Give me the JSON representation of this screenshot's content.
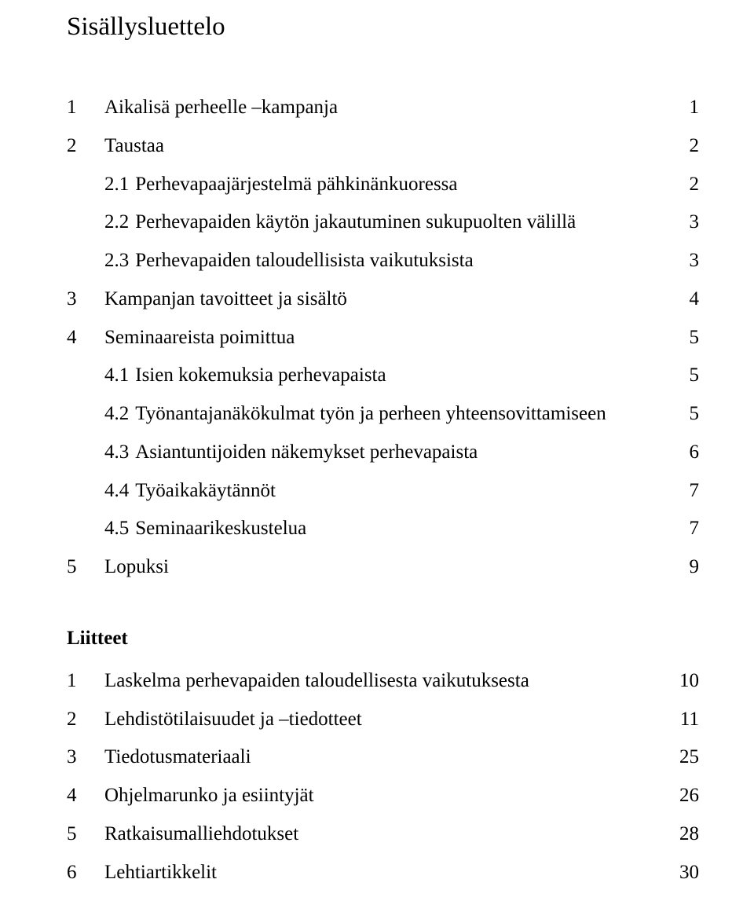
{
  "title": "Sisällysluettelo",
  "toc": {
    "items": [
      {
        "index": "1",
        "label": "Aikalisä perheelle –kampanja",
        "page": "1",
        "level": 0
      },
      {
        "index": "2",
        "label": "Taustaa",
        "page": "2",
        "level": 0
      },
      {
        "index": "",
        "sub": "2.1",
        "label": "Perhevapaajärjestelmä pähkinänkuoressa",
        "page": "2",
        "level": 1
      },
      {
        "index": "",
        "sub": "2.2",
        "label": "Perhevapaiden käytön  jakautuminen sukupuolten välillä",
        "page": "3",
        "level": 1
      },
      {
        "index": "",
        "sub": "2.3",
        "label": "Perhevapaiden taloudellisista vaikutuksista",
        "page": "3",
        "level": 1
      },
      {
        "index": "3",
        "label": "Kampanjan tavoitteet ja sisältö",
        "page": "4",
        "level": 0
      },
      {
        "index": "4",
        "label": "Seminaareista poimittua",
        "page": "5",
        "level": 0
      },
      {
        "index": "",
        "sub": "4.1",
        "label": "Isien kokemuksia perhevapaista",
        "page": "5",
        "level": 1
      },
      {
        "index": "",
        "sub": "4.2",
        "label": "Työnantajanäkökulmat työn ja perheen yhteensovittamiseen",
        "page": "5",
        "level": 1
      },
      {
        "index": "",
        "sub": "4.3",
        "label": "Asiantuntijoiden näkemykset perhevapaista",
        "page": "6",
        "level": 1
      },
      {
        "index": "",
        "sub": "4.4",
        "label": "Työaikakäytännöt",
        "page": "7",
        "level": 1
      },
      {
        "index": "",
        "sub": "4.5",
        "label": "Seminaarikeskustelua",
        "page": "7",
        "level": 1
      },
      {
        "index": "5",
        "label": "Lopuksi",
        "page": "9",
        "level": 0
      }
    ]
  },
  "appendix": {
    "heading": "Liitteet",
    "items": [
      {
        "index": "1",
        "label": "Laskelma perhevapaiden taloudellisesta vaikutuksesta",
        "page": "10"
      },
      {
        "index": "2",
        "label": "Lehdistötilaisuudet ja –tiedotteet",
        "page": "11"
      },
      {
        "index": "3",
        "label": "Tiedotusmateriaali",
        "page": "25"
      },
      {
        "index": "4",
        "label": "Ohjelmarunko ja esiintyjät",
        "page": "26"
      },
      {
        "index": "5",
        "label": "Ratkaisumalliehdotukset",
        "page": "28"
      },
      {
        "index": "6",
        "label": "Lehtiartikkelit",
        "page": "30"
      }
    ]
  },
  "style": {
    "background_color": "#ffffff",
    "text_color": "#000000",
    "title_fontsize": 33,
    "body_fontsize": 25,
    "font_family": "Times New Roman",
    "line_height": 1.95
  }
}
